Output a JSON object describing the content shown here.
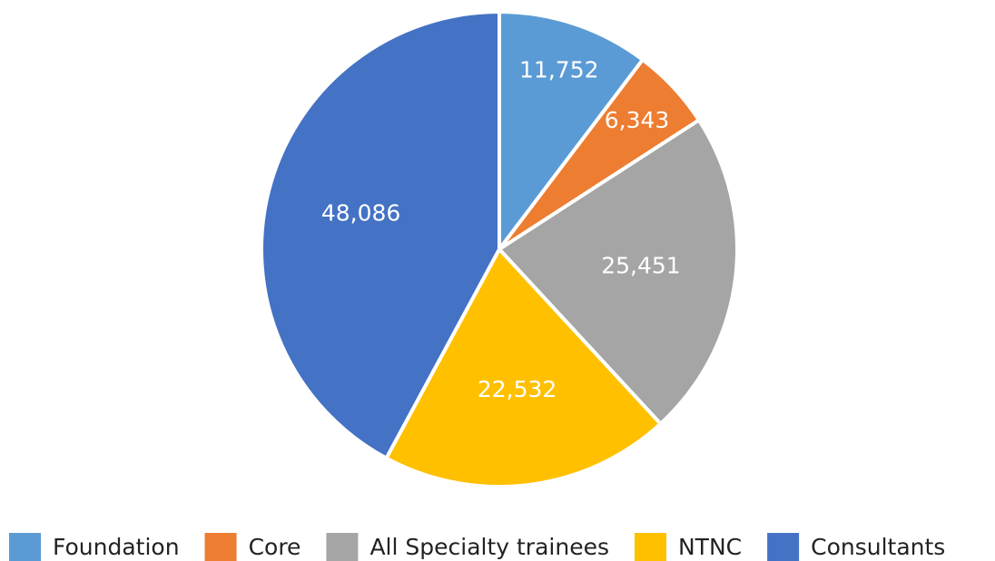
{
  "chart_data": {
    "type": "pie",
    "categories": [
      "Foundation",
      "Core",
      "All Specialty trainees",
      "NTNC",
      "Consultants"
    ],
    "values": [
      11752,
      6343,
      25451,
      22532,
      48086
    ],
    "value_labels": [
      "11,752",
      "6,343",
      "25,451",
      "22,532",
      "48,086"
    ],
    "colors": [
      "#5b9bd5",
      "#ed7d31",
      "#a5a5a5",
      "#ffc000",
      "#4472c4"
    ],
    "legend": "bottom"
  }
}
